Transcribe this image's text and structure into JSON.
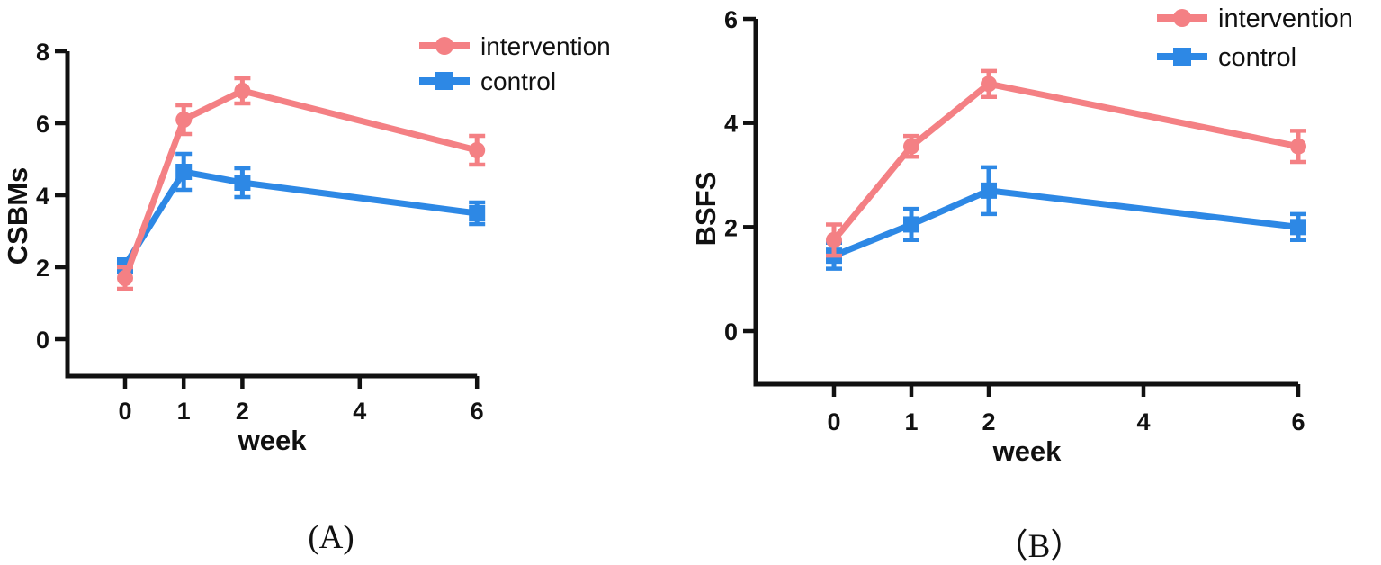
{
  "colors": {
    "intervention": "#F48084",
    "control": "#2D88E5",
    "axis": "#111111"
  },
  "chart_data": [
    {
      "type": "line",
      "panel": "A",
      "caption": "(A)",
      "xlabel": "week",
      "ylabel": "CSBMs",
      "x": [
        0,
        1,
        2,
        6
      ],
      "xticks": [
        0,
        1,
        2,
        4,
        6
      ],
      "yticks": [
        0,
        2,
        4,
        6,
        8
      ],
      "ylim": [
        0,
        8
      ],
      "xlim": [
        0,
        6
      ],
      "grid": false,
      "legend_position": "top-right",
      "series": [
        {
          "name": "intervention",
          "marker": "circle",
          "color": "#F48084",
          "values": [
            1.7,
            6.1,
            6.9,
            5.25
          ],
          "errors": [
            0.3,
            0.4,
            0.35,
            0.4
          ]
        },
        {
          "name": "control",
          "marker": "square",
          "color": "#2D88E5",
          "values": [
            2.05,
            4.65,
            4.35,
            3.5
          ],
          "errors": [
            0.15,
            0.5,
            0.4,
            0.3
          ]
        }
      ]
    },
    {
      "type": "line",
      "panel": "B",
      "caption": "（B）",
      "xlabel": "week",
      "ylabel": "BSFS",
      "x": [
        0,
        1,
        2,
        6
      ],
      "xticks": [
        0,
        1,
        2,
        4,
        6
      ],
      "yticks": [
        0,
        2,
        4,
        6
      ],
      "ylim": [
        0,
        6
      ],
      "xlim": [
        0,
        6
      ],
      "grid": false,
      "legend_position": "top-right",
      "series": [
        {
          "name": "intervention",
          "marker": "circle",
          "color": "#F48084",
          "values": [
            1.75,
            3.55,
            4.75,
            3.55
          ],
          "errors": [
            0.3,
            0.2,
            0.25,
            0.3
          ]
        },
        {
          "name": "control",
          "marker": "square",
          "color": "#2D88E5",
          "values": [
            1.45,
            2.05,
            2.7,
            2.0
          ],
          "errors": [
            0.25,
            0.3,
            0.45,
            0.25
          ]
        }
      ]
    }
  ]
}
